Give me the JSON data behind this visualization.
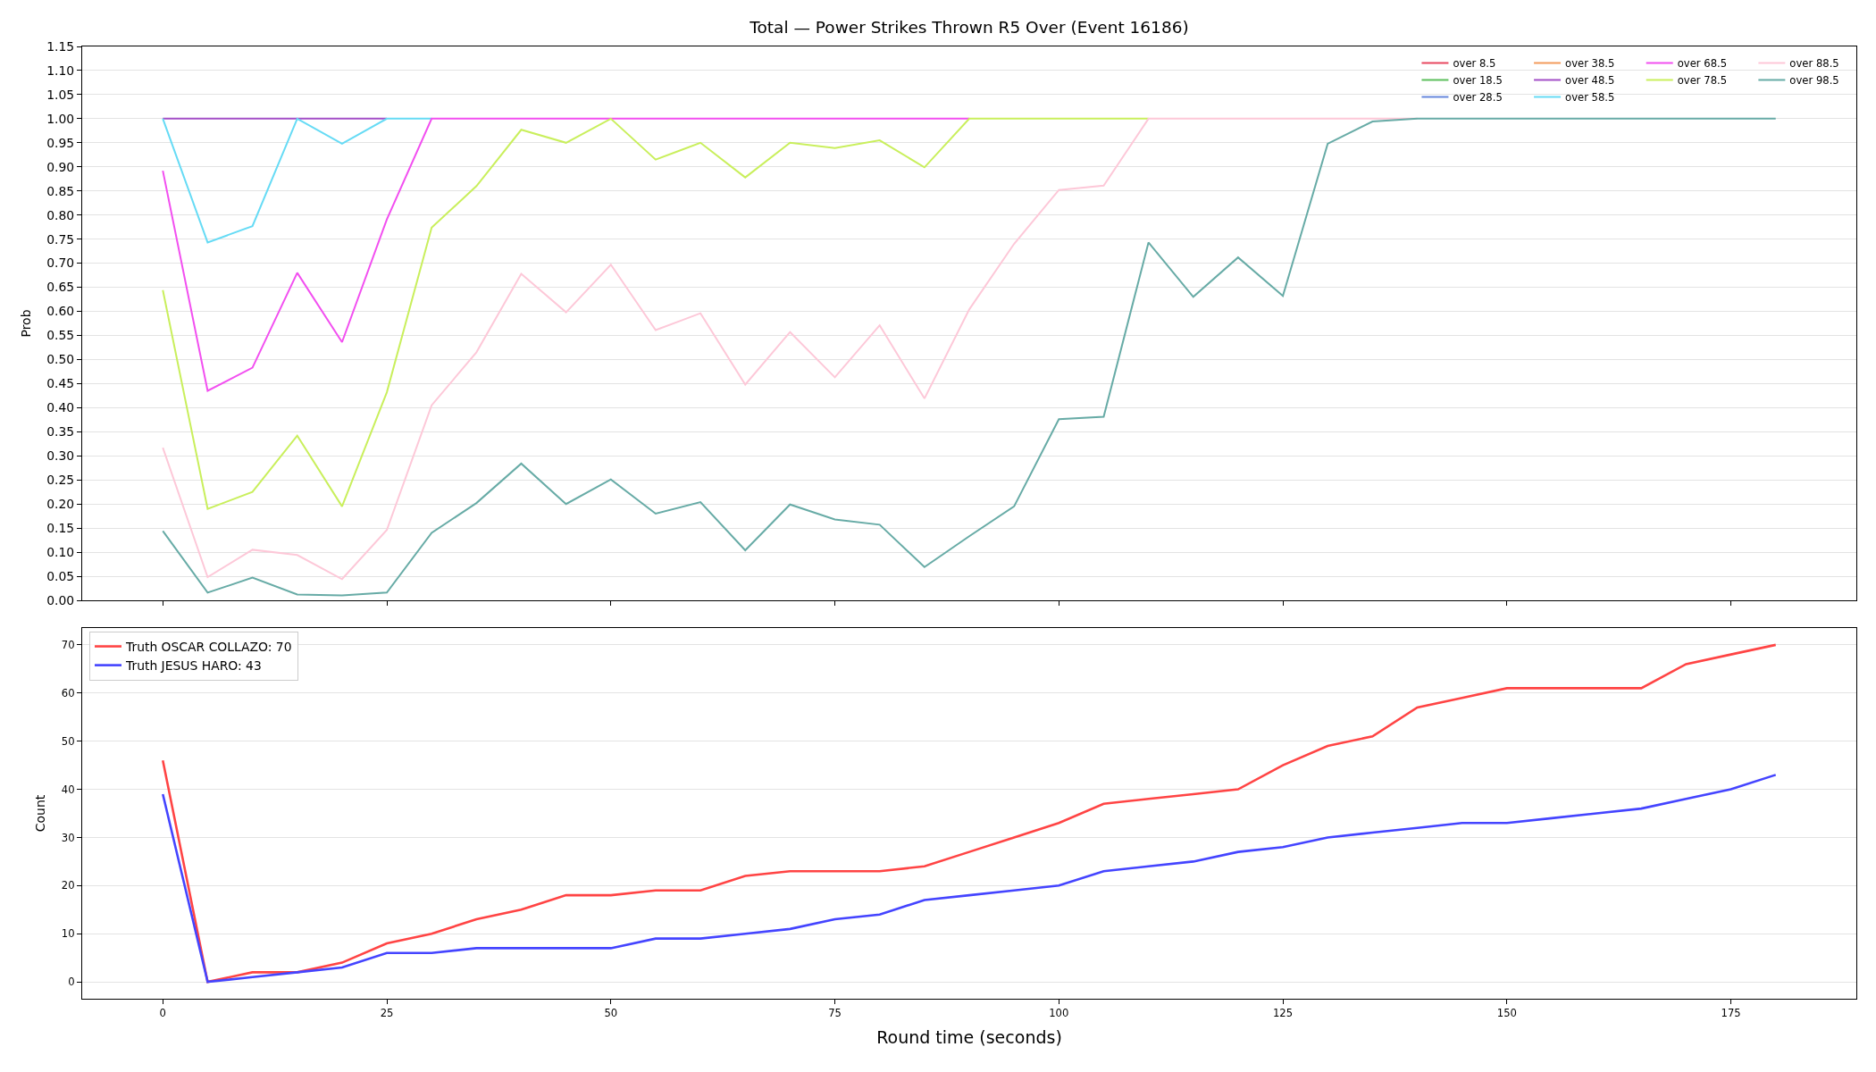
{
  "chart_data": [
    {
      "type": "line",
      "title": "Total — Power Strikes Thrown R5 Over (Event 16186)",
      "ylabel": "Prob",
      "x": [
        0,
        5,
        10,
        15,
        20,
        25,
        30,
        35,
        40,
        45,
        50,
        55,
        60,
        65,
        70,
        75,
        80,
        85,
        90,
        95,
        100,
        105,
        110,
        115,
        120,
        125,
        130,
        135,
        140,
        145,
        150,
        155,
        160,
        165,
        170,
        175,
        180
      ],
      "xlim": [
        -9,
        189
      ],
      "xticks": [
        0,
        25,
        50,
        75,
        100,
        125,
        150,
        175
      ],
      "ylim": [
        0,
        1.15
      ],
      "yticks": [
        {
          "value": 0,
          "label": "0.00"
        },
        {
          "value": 0.05,
          "label": "0.05"
        },
        {
          "value": 0.1,
          "label": "0.10"
        },
        {
          "value": 0.15,
          "label": "0.15"
        },
        {
          "value": 0.2,
          "label": "0.20"
        },
        {
          "value": 0.25,
          "label": "0.25"
        },
        {
          "value": 0.3,
          "label": "0.30"
        },
        {
          "value": 0.35,
          "label": "0.35"
        },
        {
          "value": 0.4,
          "label": "0.40"
        },
        {
          "value": 0.45,
          "label": "0.45"
        },
        {
          "value": 0.5,
          "label": "0.50"
        },
        {
          "value": 0.55,
          "label": "0.55"
        },
        {
          "value": 0.6,
          "label": "0.60"
        },
        {
          "value": 0.65,
          "label": "0.65"
        },
        {
          "value": 0.7,
          "label": "0.70"
        },
        {
          "value": 0.75,
          "label": "0.75"
        },
        {
          "value": 0.8,
          "label": "0.80"
        },
        {
          "value": 0.85,
          "label": "0.85"
        },
        {
          "value": 0.9,
          "label": "0.90"
        },
        {
          "value": 0.95,
          "label": "0.95"
        },
        {
          "value": 1,
          "label": "1.00"
        },
        {
          "value": 1.05,
          "label": "1.05"
        },
        {
          "value": 1.1,
          "label": "1.10"
        },
        {
          "value": 1.15,
          "label": "1.15"
        }
      ],
      "grid": "y",
      "legend": "top right",
      "tick_labels": "y",
      "series": [
        {
          "name": "over 8.5",
          "color": "#e8475f",
          "values": [
            null,
            null,
            null,
            null,
            null,
            null,
            null,
            null,
            null,
            null,
            null,
            null,
            null,
            null,
            null,
            null,
            null,
            null,
            null,
            null,
            null,
            null,
            null,
            null,
            null,
            null,
            null,
            null,
            null,
            null,
            null,
            null,
            null,
            null,
            null,
            null,
            null
          ]
        },
        {
          "name": "over 18.5",
          "color": "#5cbf5c",
          "values": [
            null,
            null,
            null,
            null,
            null,
            null,
            null,
            null,
            null,
            null,
            null,
            null,
            null,
            null,
            null,
            null,
            null,
            null,
            null,
            null,
            null,
            null,
            null,
            null,
            null,
            null,
            null,
            null,
            null,
            null,
            null,
            null,
            null,
            null,
            null,
            null,
            null
          ]
        },
        {
          "name": "over 28.5",
          "color": "#6688dd",
          "values": [
            null,
            null,
            null,
            null,
            null,
            null,
            null,
            null,
            null,
            null,
            null,
            null,
            null,
            null,
            null,
            null,
            null,
            null,
            null,
            null,
            null,
            null,
            null,
            null,
            null,
            null,
            null,
            null,
            null,
            null,
            null,
            null,
            null,
            null,
            null,
            null,
            null
          ]
        },
        {
          "name": "over 38.5",
          "color": "#f39a5a",
          "values": [
            null,
            null,
            null,
            null,
            null,
            null,
            null,
            null,
            null,
            null,
            null,
            null,
            null,
            null,
            null,
            null,
            null,
            null,
            null,
            null,
            null,
            null,
            null,
            null,
            null,
            null,
            null,
            null,
            null,
            null,
            null,
            null,
            null,
            null,
            null,
            null,
            null
          ]
        },
        {
          "name": "over 48.5",
          "color": "#a34ec7",
          "values": [
            1,
            1,
            1,
            1,
            1,
            1,
            null,
            null,
            null,
            null,
            null,
            null,
            null,
            null,
            null,
            null,
            null,
            null,
            null,
            null,
            null,
            null,
            null,
            null,
            null,
            null,
            null,
            null,
            null,
            null,
            null,
            null,
            null,
            null,
            null,
            null,
            null
          ]
        },
        {
          "name": "over 58.5",
          "color": "#66dbf5",
          "values": [
            1,
            0.743,
            0.777,
            1,
            0.948,
            1,
            1,
            null,
            null,
            null,
            null,
            null,
            null,
            null,
            null,
            null,
            null,
            null,
            null,
            null,
            null,
            null,
            null,
            null,
            null,
            null,
            null,
            null,
            null,
            null,
            null,
            null,
            null,
            null,
            null,
            null,
            null
          ]
        },
        {
          "name": "over 68.5",
          "color": "#f24ff0",
          "values": [
            0.892,
            0.435,
            0.483,
            0.68,
            0.536,
            0.791,
            1,
            1,
            1,
            1,
            1,
            1,
            1,
            1,
            1,
            1,
            1,
            1,
            1,
            null,
            null,
            null,
            null,
            null,
            null,
            null,
            null,
            null,
            null,
            null,
            null,
            null,
            null,
            null,
            null,
            null,
            null
          ]
        },
        {
          "name": "over 78.5",
          "color": "#c9ef5c",
          "values": [
            0.644,
            0.19,
            0.225,
            0.342,
            0.195,
            0.432,
            0.774,
            0.86,
            0.977,
            0.95,
            1,
            0.915,
            0.95,
            0.878,
            0.95,
            0.939,
            0.955,
            0.899,
            1,
            1,
            1,
            1,
            1,
            null,
            null,
            null,
            null,
            null,
            null,
            null,
            null,
            null,
            null,
            null,
            null,
            null,
            null
          ]
        },
        {
          "name": "over 88.5",
          "color": "#fdc8d8",
          "values": [
            0.317,
            0.048,
            0.105,
            0.094,
            0.044,
            0.146,
            0.405,
            0.515,
            0.678,
            0.598,
            0.697,
            0.561,
            0.596,
            0.448,
            0.557,
            0.463,
            0.571,
            0.419,
            0.604,
            0.74,
            0.852,
            0.861,
            1,
            1,
            1,
            1,
            1,
            1,
            1,
            null,
            null,
            null,
            null,
            null,
            null,
            null,
            null
          ]
        },
        {
          "name": "over 98.5",
          "color": "#67aba6",
          "values": [
            0.144,
            0.016,
            0.047,
            0.012,
            0.01,
            0.016,
            0.14,
            0.202,
            0.284,
            0.2,
            0.251,
            0.18,
            0.204,
            0.104,
            0.199,
            0.168,
            0.157,
            0.069,
            0.133,
            0.195,
            0.376,
            0.381,
            0.743,
            0.63,
            0.712,
            0.632,
            0.948,
            0.994,
            1,
            1,
            1,
            1,
            1,
            1,
            1,
            1,
            1
          ]
        }
      ]
    },
    {
      "type": "line",
      "xlabel": "Round time (seconds)",
      "ylabel": "Count",
      "x": [
        0,
        5,
        10,
        15,
        20,
        25,
        30,
        35,
        40,
        45,
        50,
        55,
        60,
        65,
        70,
        75,
        80,
        85,
        90,
        95,
        100,
        105,
        110,
        115,
        120,
        125,
        130,
        135,
        140,
        145,
        150,
        155,
        160,
        165,
        170,
        175,
        180
      ],
      "xlim": [
        -9,
        189
      ],
      "xticks": [
        0,
        25,
        50,
        75,
        100,
        125,
        150,
        175
      ],
      "ylim": [
        -3.5,
        73.5
      ],
      "yticks": [
        0,
        10,
        20,
        30,
        40,
        50,
        60,
        70
      ],
      "grid": "y",
      "legend": "top left",
      "series": [
        {
          "name": "Truth OSCAR COLLAZO: 70",
          "color": "#ff4444",
          "values": [
            46,
            0,
            2,
            2,
            4,
            8,
            10,
            13,
            15,
            18,
            18,
            19,
            19,
            22,
            23,
            23,
            23,
            24,
            27,
            30,
            33,
            37,
            38,
            39,
            40,
            45,
            49,
            51,
            57,
            59,
            61,
            61,
            61,
            61,
            66,
            68,
            70
          ]
        },
        {
          "name": "Truth JESUS HARO: 43",
          "color": "#4444ff",
          "values": [
            39,
            0,
            1,
            2,
            3,
            6,
            6,
            7,
            7,
            7,
            7,
            9,
            9,
            10,
            11,
            13,
            14,
            17,
            18,
            19,
            20,
            23,
            24,
            25,
            27,
            28,
            30,
            31,
            32,
            33,
            33,
            34,
            35,
            36,
            38,
            40,
            43
          ]
        }
      ]
    }
  ]
}
